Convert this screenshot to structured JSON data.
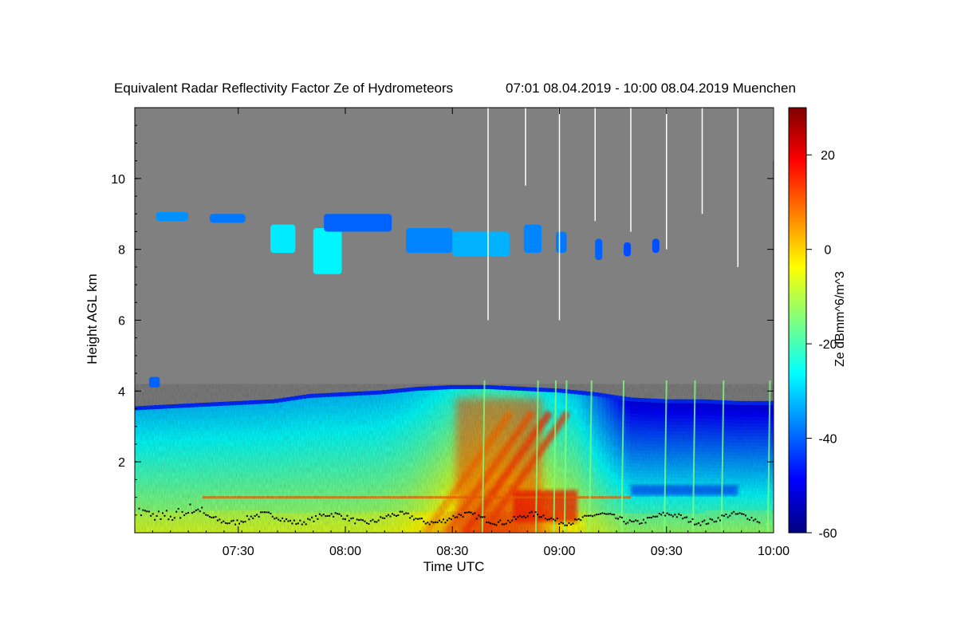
{
  "chart_data": {
    "type": "heatmap",
    "title": "Equivalent Radar Reflectivity Factor Ze of Hydrometeors",
    "subtitle": "07:01 08.04.2019 - 10:00 08.04.2019 Muenchen",
    "xlabel": "Time UTC",
    "ylabel": "Height AGL km",
    "colorbar_label": "Ze dBmm^6/m^3",
    "x_range_minutes": [
      421,
      600
    ],
    "y_range_km": [
      0,
      12
    ],
    "x_ticks": [
      {
        "value": 450,
        "label": "07:30"
      },
      {
        "value": 480,
        "label": "08:00"
      },
      {
        "value": 510,
        "label": "08:30"
      },
      {
        "value": 540,
        "label": "09:00"
      },
      {
        "value": 570,
        "label": "09:30"
      },
      {
        "value": 600,
        "label": "10:00"
      }
    ],
    "y_ticks": [
      {
        "value": 2,
        "label": "2"
      },
      {
        "value": 4,
        "label": "4"
      },
      {
        "value": 6,
        "label": "6"
      },
      {
        "value": 8,
        "label": "8"
      },
      {
        "value": 10,
        "label": "10"
      }
    ],
    "colorbar_range": [
      -60,
      30
    ],
    "colorbar_ticks": [
      {
        "value": -60,
        "label": "-60"
      },
      {
        "value": -40,
        "label": "-40"
      },
      {
        "value": -20,
        "label": "-20"
      },
      {
        "value": 0,
        "label": "0"
      },
      {
        "value": 20,
        "label": "20"
      }
    ],
    "colormap": [
      "#00007f",
      "#0000ff",
      "#007fff",
      "#00ffff",
      "#7fff7f",
      "#ffff00",
      "#ff7f00",
      "#ff0000",
      "#7f0000"
    ],
    "background_color": "#808080",
    "echo_top_km": [
      [
        421,
        3.5
      ],
      [
        430,
        3.55
      ],
      [
        440,
        3.6
      ],
      [
        450,
        3.65
      ],
      [
        460,
        3.7
      ],
      [
        470,
        3.85
      ],
      [
        480,
        3.9
      ],
      [
        490,
        3.95
      ],
      [
        500,
        4.05
      ],
      [
        510,
        4.1
      ],
      [
        520,
        4.1
      ],
      [
        530,
        4.05
      ],
      [
        540,
        4.0
      ],
      [
        550,
        3.9
      ],
      [
        560,
        3.75
      ],
      [
        570,
        3.7
      ],
      [
        580,
        3.7
      ],
      [
        590,
        3.65
      ],
      [
        600,
        3.65
      ]
    ],
    "rain_streaks": [
      {
        "t": 506,
        "ze": 5
      },
      {
        "t": 512,
        "ze": 10
      },
      {
        "t": 517,
        "ze": 16
      },
      {
        "t": 522,
        "ze": 14
      }
    ],
    "strong_core": {
      "t_start": 511,
      "t_end": 535,
      "top_km": 3.8,
      "ze": 12
    },
    "low_band_km": 1.0,
    "melting_layer": {
      "t_start": 527,
      "t_end": 545,
      "top_km": 1.2,
      "ze": 17
    },
    "upper_cloud_patches": [
      {
        "t0": 427,
        "t1": 436,
        "h0": 8.8,
        "h1": 9.05,
        "ze": -36
      },
      {
        "t0": 442,
        "t1": 452,
        "h0": 8.75,
        "h1": 9.0,
        "ze": -38
      },
      {
        "t0": 459,
        "t1": 466,
        "h0": 7.9,
        "h1": 8.7,
        "ze": -28
      },
      {
        "t0": 471,
        "t1": 479,
        "h0": 7.3,
        "h1": 8.6,
        "ze": -27
      },
      {
        "t0": 474,
        "t1": 493,
        "h0": 8.5,
        "h1": 9.0,
        "ze": -40
      },
      {
        "t0": 497,
        "t1": 510,
        "h0": 7.9,
        "h1": 8.6,
        "ze": -37
      },
      {
        "t0": 510,
        "t1": 526,
        "h0": 7.8,
        "h1": 8.5,
        "ze": -33
      },
      {
        "t0": 530,
        "t1": 535,
        "h0": 7.9,
        "h1": 8.7,
        "ze": -37
      },
      {
        "t0": 539,
        "t1": 542,
        "h0": 7.9,
        "h1": 8.5,
        "ze": -38
      },
      {
        "t0": 550,
        "t1": 552,
        "h0": 7.7,
        "h1": 8.3,
        "ze": -40
      },
      {
        "t0": 558,
        "t1": 560,
        "h0": 7.8,
        "h1": 8.2,
        "ze": -42
      },
      {
        "t0": 566,
        "t1": 568,
        "h0": 7.9,
        "h1": 8.3,
        "ze": -42
      }
    ],
    "low_cloud_blob": {
      "t0": 425,
      "t1": 428,
      "h0": 4.1,
      "h1": 4.4,
      "ze": -40
    },
    "vertical_artifacts": [
      {
        "t": 520,
        "h_bottom": 6.0
      },
      {
        "t": 530.5,
        "h_bottom": 9.8
      },
      {
        "t": 540,
        "h_bottom": 6.0
      },
      {
        "t": 550,
        "h_bottom": 8.8
      },
      {
        "t": 560,
        "h_bottom": 8.5
      },
      {
        "t": 570,
        "h_bottom": 8.0
      },
      {
        "t": 580,
        "h_bottom": 9.0
      },
      {
        "t": 590,
        "h_bottom": 7.5
      },
      {
        "t": 600,
        "h_bottom": 10.5
      }
    ],
    "surface_streaks_t": [
      519,
      534,
      539,
      542,
      549,
      558,
      570,
      578,
      586,
      599
    ]
  }
}
